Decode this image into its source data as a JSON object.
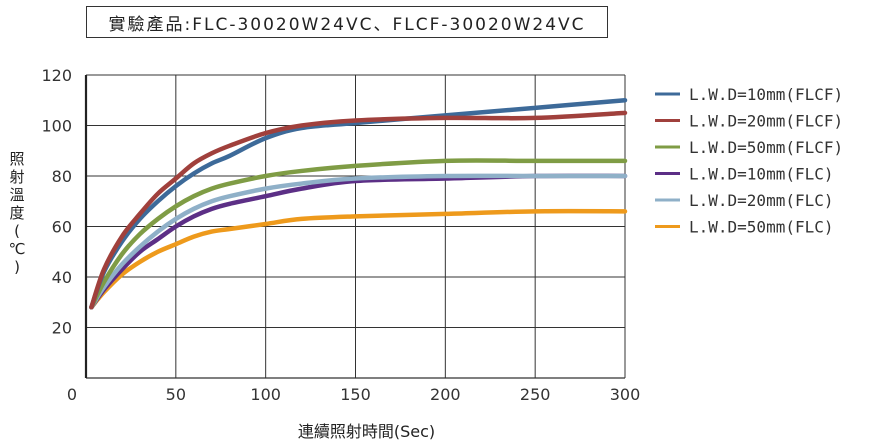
{
  "chart_data": {
    "type": "line",
    "title": "實驗產品:FLC-30020W24VC、FLCF-30020W24VC",
    "xlabel": "連續照射時間(Sec)",
    "ylabel": "照射溫度(℃)",
    "xlim": [
      0,
      300
    ],
    "ylim": [
      0,
      120
    ],
    "xticks": [
      0,
      50,
      100,
      150,
      200,
      250,
      300
    ],
    "yticks": [
      20,
      40,
      60,
      80,
      100,
      120
    ],
    "grid": true,
    "legend_position": "right",
    "series": [
      {
        "name": "L.W.D=10mm(FLCF)",
        "color": "#3d6a99",
        "x": [
          3,
          10,
          20,
          30,
          40,
          50,
          60,
          70,
          80,
          100,
          120,
          150,
          200,
          250,
          300
        ],
        "y": [
          28,
          42,
          54,
          63,
          70,
          76,
          81,
          85,
          88,
          95,
          99,
          101,
          104,
          107,
          110
        ]
      },
      {
        "name": "L.W.D=20mm(FLCF)",
        "color": "#a0403c",
        "x": [
          3,
          10,
          20,
          30,
          40,
          50,
          60,
          70,
          80,
          100,
          120,
          150,
          200,
          250,
          300
        ],
        "y": [
          28,
          43,
          56,
          65,
          73,
          79,
          85,
          89,
          92,
          97,
          100,
          102,
          103,
          103,
          105
        ]
      },
      {
        "name": "L.W.D=50mm(FLCF)",
        "color": "#7f9c45",
        "x": [
          3,
          10,
          20,
          30,
          40,
          50,
          60,
          70,
          80,
          100,
          120,
          150,
          200,
          250,
          300
        ],
        "y": [
          28,
          38,
          49,
          57,
          63,
          68,
          72,
          75,
          77,
          80,
          82,
          84,
          86,
          86,
          86
        ]
      },
      {
        "name": "L.W.D=10mm(FLC)",
        "color": "#5c2f86",
        "x": [
          3,
          10,
          20,
          30,
          40,
          50,
          60,
          70,
          80,
          100,
          120,
          150,
          200,
          250,
          300
        ],
        "y": [
          28,
          35,
          43,
          50,
          55,
          60,
          64,
          67,
          69,
          72,
          75,
          78,
          79,
          80,
          80
        ]
      },
      {
        "name": "L.W.D=20mm(FLC)",
        "color": "#8fb0c8",
        "x": [
          3,
          10,
          20,
          30,
          40,
          50,
          60,
          70,
          80,
          100,
          120,
          150,
          200,
          250,
          300
        ],
        "y": [
          28,
          36,
          45,
          52,
          58,
          63,
          67,
          70,
          72,
          75,
          77,
          79,
          80,
          80,
          80
        ]
      },
      {
        "name": "L.W.D=50mm(FLC)",
        "color": "#ee9a1c",
        "x": [
          3,
          10,
          20,
          30,
          40,
          50,
          60,
          70,
          80,
          100,
          120,
          150,
          200,
          250,
          300
        ],
        "y": [
          28,
          34,
          41,
          46,
          50,
          53,
          56,
          58,
          59,
          61,
          63,
          64,
          65,
          66,
          66
        ]
      }
    ]
  }
}
